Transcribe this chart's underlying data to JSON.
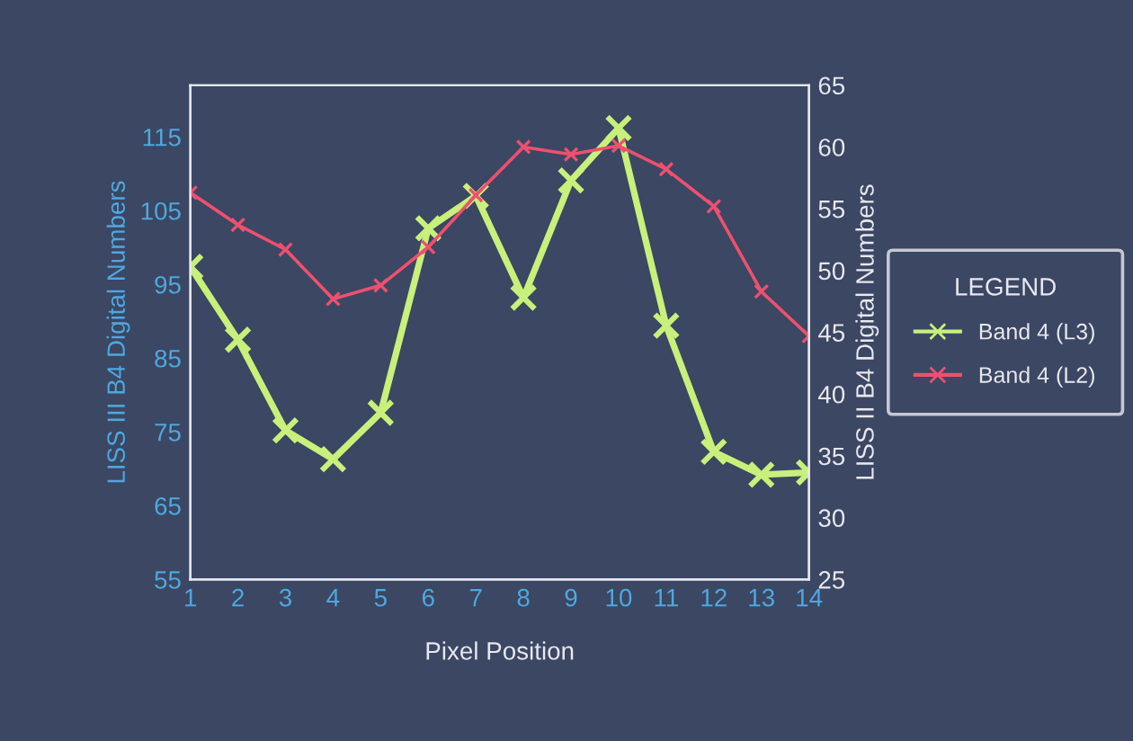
{
  "chart_data": {
    "type": "line",
    "xlabel": "Pixel Position",
    "ylabel": "LISS III B4 Digital Numbers",
    "y2label": "LISS II B4 Digital Numbers",
    "legend_title": "LEGEND",
    "x": [
      1,
      2,
      3,
      4,
      5,
      6,
      7,
      8,
      9,
      10,
      11,
      12,
      13,
      14
    ],
    "series": [
      {
        "name": "Band 4 (L3)",
        "color": "#c8f07a",
        "values": [
          97.4,
          87.5,
          75.2,
          71.3,
          77.6,
          102.6,
          107,
          93.2,
          109.1,
          116.2,
          89.4,
          72.3,
          69.2,
          69.5
        ]
      },
      {
        "name": "Band 4 (L2)",
        "color": "#ee5070",
        "axis": "y2",
        "values": [
          56.3,
          53.7,
          51.7,
          47.7,
          48.8,
          51.9,
          56.1,
          60,
          59.4,
          60.1,
          58.2,
          55.2,
          48.3,
          44.7
        ]
      }
    ],
    "xlim": [
      1,
      14
    ],
    "xticks": [
      1,
      2,
      3,
      4,
      5,
      6,
      7,
      8,
      9,
      10,
      11,
      12,
      13,
      14
    ],
    "ylim": [
      55,
      122
    ],
    "yticks": [
      55,
      65,
      75,
      85,
      95,
      105,
      115
    ],
    "y2lim": [
      25,
      65
    ],
    "y2ticks": [
      25,
      30,
      35,
      40,
      45,
      50,
      55,
      60,
      65
    ],
    "grid": false,
    "legend": "right",
    "marker": "cross",
    "line_style": "solid"
  }
}
